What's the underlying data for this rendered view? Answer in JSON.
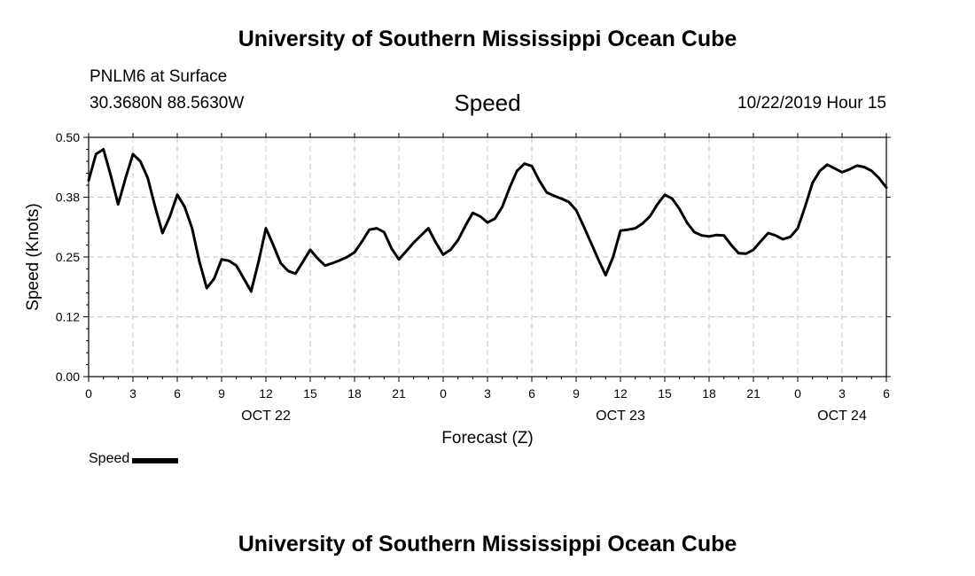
{
  "header": {
    "title": "University of Southern Mississippi Ocean Cube",
    "station": "PNLM6 at Surface",
    "coords": "30.3680N 88.5630W",
    "datetime": "10/22/2019 Hour 15"
  },
  "footer": {
    "title": "University of Southern Mississippi Ocean Cube"
  },
  "legend": {
    "label": "Speed",
    "color": "#000000"
  },
  "chart_data": {
    "type": "line",
    "title": "Speed",
    "xlabel": "Forecast (Z)",
    "ylabel": "Speed (Knots)",
    "ylim": [
      0,
      0.5
    ],
    "yticks": [
      {
        "value": 0.0,
        "label": "0.00"
      },
      {
        "value": 0.125,
        "label": "0.12"
      },
      {
        "value": 0.25,
        "label": "0.25"
      },
      {
        "value": 0.375,
        "label": "0.38"
      },
      {
        "value": 0.5,
        "label": "0.50"
      }
    ],
    "xlim": [
      0,
      54
    ],
    "xticks": [
      {
        "value": 0,
        "label": "0"
      },
      {
        "value": 3,
        "label": "3"
      },
      {
        "value": 6,
        "label": "6"
      },
      {
        "value": 9,
        "label": "9"
      },
      {
        "value": 12,
        "label": "12"
      },
      {
        "value": 15,
        "label": "15"
      },
      {
        "value": 18,
        "label": "18"
      },
      {
        "value": 21,
        "label": "21"
      },
      {
        "value": 24,
        "label": "0"
      },
      {
        "value": 27,
        "label": "3"
      },
      {
        "value": 30,
        "label": "6"
      },
      {
        "value": 33,
        "label": "9"
      },
      {
        "value": 36,
        "label": "12"
      },
      {
        "value": 39,
        "label": "15"
      },
      {
        "value": 42,
        "label": "18"
      },
      {
        "value": 45,
        "label": "21"
      },
      {
        "value": 48,
        "label": "0"
      },
      {
        "value": 51,
        "label": "3"
      },
      {
        "value": 54,
        "label": "6"
      }
    ],
    "date_labels": [
      {
        "value": 12,
        "label": "OCT 22"
      },
      {
        "value": 36,
        "label": "OCT 23"
      },
      {
        "value": 51,
        "label": "OCT 24"
      }
    ],
    "grid": true,
    "legend_position": "bottom-left",
    "series": [
      {
        "name": "Speed",
        "color": "#000000",
        "x": [
          0,
          0.5,
          1,
          1.5,
          2,
          2.5,
          3,
          3.5,
          4,
          4.5,
          5,
          5.5,
          6,
          6.5,
          7,
          7.5,
          8,
          8.5,
          9,
          9.5,
          10,
          10.5,
          11,
          11.5,
          12,
          12.5,
          13,
          13.5,
          14,
          14.5,
          15,
          15.5,
          16,
          16.5,
          17,
          17.5,
          18,
          18.5,
          19,
          19.5,
          20,
          20.5,
          21,
          21.5,
          22,
          22.5,
          23,
          23.5,
          24,
          24.5,
          25,
          25.5,
          26,
          26.5,
          27,
          27.5,
          28,
          28.5,
          29,
          29.5,
          30,
          30.5,
          31,
          31.5,
          32,
          32.5,
          33,
          33.5,
          34,
          34.5,
          35,
          35.5,
          36,
          36.5,
          37,
          37.5,
          38,
          38.5,
          39,
          39.5,
          40,
          40.5,
          41,
          41.5,
          42,
          42.5,
          43,
          43.5,
          44,
          44.5,
          45,
          45.5,
          46,
          46.5,
          47,
          47.5,
          48,
          48.5,
          49,
          49.5,
          50,
          50.5,
          51,
          51.5,
          52,
          52.5,
          53,
          53.5,
          54
        ],
        "values": [
          0.41,
          0.465,
          0.475,
          0.42,
          0.36,
          0.415,
          0.465,
          0.45,
          0.415,
          0.355,
          0.3,
          0.335,
          0.38,
          0.355,
          0.31,
          0.24,
          0.185,
          0.205,
          0.245,
          0.242,
          0.232,
          0.205,
          0.178,
          0.24,
          0.31,
          0.275,
          0.237,
          0.221,
          0.215,
          0.24,
          0.265,
          0.247,
          0.232,
          0.237,
          0.243,
          0.25,
          0.26,
          0.282,
          0.307,
          0.31,
          0.302,
          0.268,
          0.245,
          0.262,
          0.28,
          0.295,
          0.31,
          0.28,
          0.255,
          0.265,
          0.285,
          0.315,
          0.342,
          0.335,
          0.322,
          0.33,
          0.355,
          0.395,
          0.43,
          0.445,
          0.44,
          0.41,
          0.385,
          0.378,
          0.372,
          0.365,
          0.348,
          0.315,
          0.28,
          0.245,
          0.212,
          0.25,
          0.305,
          0.307,
          0.31,
          0.32,
          0.335,
          0.36,
          0.38,
          0.372,
          0.35,
          0.322,
          0.302,
          0.295,
          0.293,
          0.296,
          0.295,
          0.275,
          0.258,
          0.257,
          0.265,
          0.283,
          0.3,
          0.295,
          0.287,
          0.292,
          0.31,
          0.355,
          0.405,
          0.43,
          0.443,
          0.435,
          0.427,
          0.433,
          0.441,
          0.438,
          0.43,
          0.415,
          0.395
        ]
      }
    ]
  }
}
